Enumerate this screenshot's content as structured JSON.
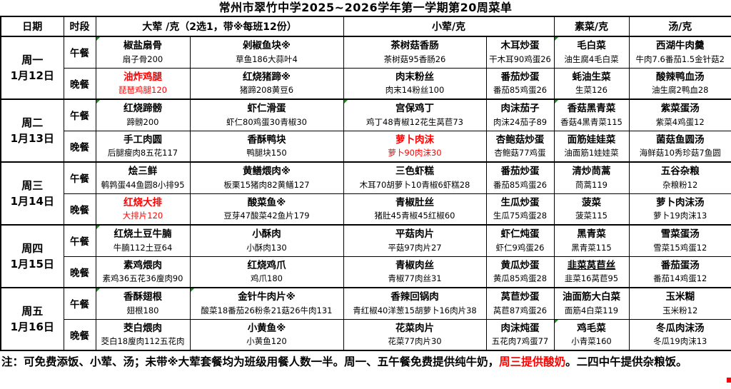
{
  "title": "常州市翠竹中学2025~2026学年第一学期第20周菜单",
  "columns": {
    "date": "日期",
    "period": "时段",
    "meat_main": "大荤 /克（2选1，带※每班12份）",
    "meat_small": "小荤/克",
    "veg": "素菜/克",
    "soup": "汤/克"
  },
  "accent": {
    "highlight_red": "#ff0000",
    "comment_green": "#1e8a1e"
  },
  "days": [
    {
      "day": "周一",
      "date": "1月12日",
      "meals": [
        {
          "period": "午餐",
          "cells": [
            {
              "name": "椒盐扇骨",
              "desc": "扇子骨200",
              "corner": true
            },
            {
              "name": "剁椒鱼块※",
              "desc": "草鱼186大蒜叶4"
            },
            {
              "name": "茶树菇香肠",
              "desc": "茶树菇95香肠26"
            },
            {
              "name": "木耳炒蛋",
              "desc": "干木耳90鸡蛋26"
            },
            {
              "name": "毛白菜",
              "desc": "油生腐4毛白菜",
              "corner": true
            },
            {
              "name": "西湖牛肉羹",
              "desc": "牛肉7.6番茄1.5金针菇2"
            }
          ]
        },
        {
          "period": "晚餐",
          "cells": [
            {
              "name": "油炸鸡腿",
              "desc": "琵琶鸡腿120",
              "red": true
            },
            {
              "name": "红烧猪蹄※",
              "desc": "猪蹄208黄豆6"
            },
            {
              "name": "肉末粉丝",
              "desc": "肉末14粉丝100"
            },
            {
              "name": "番茄炒蛋",
              "desc": "番茄85鸡蛋26"
            },
            {
              "name": "蚝油生菜",
              "desc": "生菜126"
            },
            {
              "name": "酸辣鸭血汤",
              "desc": "油生腐2鸭血28"
            }
          ]
        }
      ]
    },
    {
      "day": "周二",
      "date": "1月13日",
      "meals": [
        {
          "period": "午餐",
          "cells": [
            {
              "name": "红烧蹄髈",
              "desc": "蹄髈200",
              "corner": true
            },
            {
              "name": "虾仁滑蛋",
              "desc": "虾仁80鸡蛋30青椒30"
            },
            {
              "name": "宫保鸡丁",
              "desc": "鸡丁48青椒12花生莴苣73",
              "corner": true
            },
            {
              "name": "肉沫茄子",
              "desc": "肉沫24茄子89"
            },
            {
              "name": "香菇黑青菜",
              "desc": "香菇4黑青菜115",
              "corner": true
            },
            {
              "name": "紫菜蛋汤",
              "desc": "紫菜4鸡蛋12"
            }
          ]
        },
        {
          "period": "晚餐",
          "cells": [
            {
              "name": "手工肉圆",
              "desc": "后腿瘦肉8五花117"
            },
            {
              "name": "香酥鸭块",
              "desc": "鸭腿块150"
            },
            {
              "name": "萝卜肉沫",
              "desc": "萝卜90肉沫30",
              "red": true
            },
            {
              "name": "杏鲍菇炒蛋",
              "desc": "杏鲍菇77鸡蛋"
            },
            {
              "name": "面筋娃娃菜",
              "desc": "油面筋1娃娃菜"
            },
            {
              "name": "菌菇鱼圆汤",
              "desc": "海鲜菇10秀珍菇7鱼圆"
            }
          ]
        }
      ]
    },
    {
      "day": "周三",
      "date": "1月14日",
      "meals": [
        {
          "period": "午餐",
          "cells": [
            {
              "name": "烩三鲜",
              "desc": "鹌鹑蛋44鱼圆8小排95"
            },
            {
              "name": "黄鳝煨肉※",
              "desc": "板栗15猪肉82黄鳝127"
            },
            {
              "name": "三色虾糕",
              "desc": "木耳70胡萝卜10青椒6虾糕28"
            },
            {
              "name": "番茄炒蛋",
              "desc": "番茄85鸡蛋26"
            },
            {
              "name": "清炒茼蒿",
              "desc": "茼蒿119"
            },
            {
              "name": "五谷杂粮",
              "desc": "杂粮粉12"
            }
          ]
        },
        {
          "period": "晚餐",
          "cells": [
            {
              "name": "红烧大排",
              "desc": "大排片120",
              "red": true
            },
            {
              "name": "酸菜鱼※",
              "desc": "豆芽47酸菜42鱼片179"
            },
            {
              "name": "青椒肚丝",
              "desc": "猪肚45青椒45红椒60"
            },
            {
              "name": "生瓜炒蛋",
              "desc": "生瓜75鸡蛋28"
            },
            {
              "name": "菠菜",
              "desc": "菠菜115"
            },
            {
              "name": "萝卜肉沫汤",
              "desc": "萝卜19肉沫13"
            }
          ]
        }
      ]
    },
    {
      "day": "周四",
      "date": "1月15日",
      "meals": [
        {
          "period": "午餐",
          "cells": [
            {
              "name": "红烧土豆牛腩",
              "desc": "牛腩112土豆64",
              "corner": true
            },
            {
              "name": "小酥肉",
              "desc": "小酥肉130"
            },
            {
              "name": "平菇肉片",
              "desc": "平菇97肉片27"
            },
            {
              "name": "虾仁炖蛋",
              "desc": "虾仁9鸡蛋26"
            },
            {
              "name": "黑青菜",
              "desc": "黑青菜115"
            },
            {
              "name": "雪菜蛋汤",
              "desc": "雪菜15鸡蛋12"
            }
          ]
        },
        {
          "period": "晚餐",
          "cells": [
            {
              "name": "素鸡煨肉",
              "desc": "素鸡36五花36廋肉90"
            },
            {
              "name": "红烧鸡爪",
              "desc": "鸡爪180"
            },
            {
              "name": "青椒肉丝",
              "desc": "青椒77肉丝31"
            },
            {
              "name": "黄瓜炒蛋",
              "desc": "黄瓜85鸡蛋28"
            },
            {
              "name": "韭菜莴苣丝",
              "desc": "韭菜16莴苣95",
              "underline": true
            },
            {
              "name": "番茄蛋汤",
              "desc": "番茄14鸡蛋12"
            }
          ]
        }
      ]
    },
    {
      "day": "周五",
      "date": "1月16日",
      "meals": [
        {
          "period": "午餐",
          "cells": [
            {
              "name": "香酥翅根",
              "desc": "翅根180",
              "corner": true
            },
            {
              "name": "金针牛肉片※",
              "desc": "酸菜18番茄26粉条21菇26牛肉131",
              "corner": true
            },
            {
              "name": "香辣回锅肉",
              "desc": "青红椒40洋葱15胡萝卜16肉片38"
            },
            {
              "name": "莴苣炒蛋",
              "desc": "莴苣87鸡蛋26"
            },
            {
              "name": "油面筋大白菜",
              "desc": "面筋4白菜119"
            },
            {
              "name": "玉米糊",
              "desc": "玉米粉12"
            }
          ]
        },
        {
          "period": "晚餐",
          "cells": [
            {
              "name": "茭白煨肉",
              "desc": "茭白18廋肉112五花肉"
            },
            {
              "name": "小黄鱼※",
              "desc": "小黄鱼120"
            },
            {
              "name": "花菜肉片",
              "desc": "花菜77肉片30"
            },
            {
              "name": "肉沫炖蛋",
              "desc": "五花肉7鸡蛋77"
            },
            {
              "name": "鸡毛菜",
              "desc": "小青菜160",
              "corner": true
            },
            {
              "name": "冬瓜肉沫汤",
              "desc": "冬瓜19肉沫13"
            }
          ]
        }
      ]
    }
  ],
  "footer": {
    "part1": "注：可免费添饭、小荤、汤；未带※大荤套餐均为班级用餐人数一半。周一、五午餐免费提供纯牛奶，",
    "highlight": "周三提供酸奶",
    "part2": "。二四中午提供杂粮饭。"
  }
}
